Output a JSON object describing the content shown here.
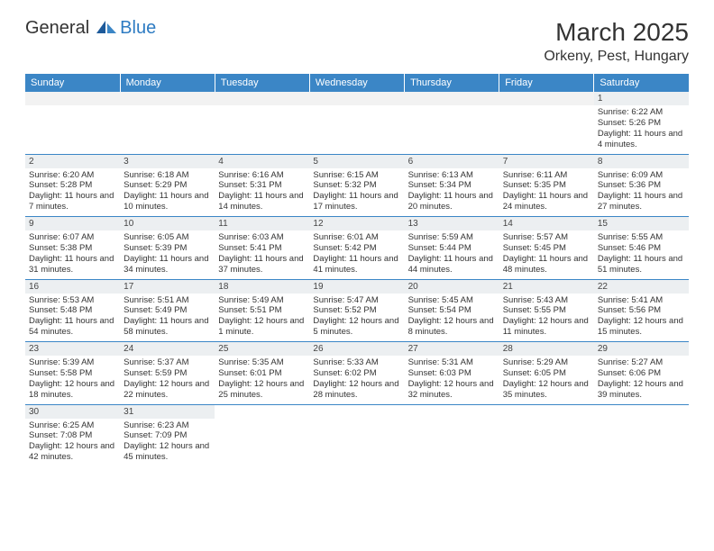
{
  "logo": {
    "general": "General",
    "blue": "Blue"
  },
  "title": "March 2025",
  "location": "Orkeny, Pest, Hungary",
  "colors": {
    "header_bg": "#3b86c6",
    "header_text": "#ffffff",
    "daynum_bg": "#eceff1",
    "border": "#3b86c6",
    "logo_blue": "#2d7bc2"
  },
  "day_headers": [
    "Sunday",
    "Monday",
    "Tuesday",
    "Wednesday",
    "Thursday",
    "Friday",
    "Saturday"
  ],
  "weeks": [
    [
      null,
      null,
      null,
      null,
      null,
      null,
      {
        "n": "1",
        "sr": "6:22 AM",
        "ss": "5:26 PM",
        "dl": "11 hours and 4 minutes."
      }
    ],
    [
      {
        "n": "2",
        "sr": "6:20 AM",
        "ss": "5:28 PM",
        "dl": "11 hours and 7 minutes."
      },
      {
        "n": "3",
        "sr": "6:18 AM",
        "ss": "5:29 PM",
        "dl": "11 hours and 10 minutes."
      },
      {
        "n": "4",
        "sr": "6:16 AM",
        "ss": "5:31 PM",
        "dl": "11 hours and 14 minutes."
      },
      {
        "n": "5",
        "sr": "6:15 AM",
        "ss": "5:32 PM",
        "dl": "11 hours and 17 minutes."
      },
      {
        "n": "6",
        "sr": "6:13 AM",
        "ss": "5:34 PM",
        "dl": "11 hours and 20 minutes."
      },
      {
        "n": "7",
        "sr": "6:11 AM",
        "ss": "5:35 PM",
        "dl": "11 hours and 24 minutes."
      },
      {
        "n": "8",
        "sr": "6:09 AM",
        "ss": "5:36 PM",
        "dl": "11 hours and 27 minutes."
      }
    ],
    [
      {
        "n": "9",
        "sr": "6:07 AM",
        "ss": "5:38 PM",
        "dl": "11 hours and 31 minutes."
      },
      {
        "n": "10",
        "sr": "6:05 AM",
        "ss": "5:39 PM",
        "dl": "11 hours and 34 minutes."
      },
      {
        "n": "11",
        "sr": "6:03 AM",
        "ss": "5:41 PM",
        "dl": "11 hours and 37 minutes."
      },
      {
        "n": "12",
        "sr": "6:01 AM",
        "ss": "5:42 PM",
        "dl": "11 hours and 41 minutes."
      },
      {
        "n": "13",
        "sr": "5:59 AM",
        "ss": "5:44 PM",
        "dl": "11 hours and 44 minutes."
      },
      {
        "n": "14",
        "sr": "5:57 AM",
        "ss": "5:45 PM",
        "dl": "11 hours and 48 minutes."
      },
      {
        "n": "15",
        "sr": "5:55 AM",
        "ss": "5:46 PM",
        "dl": "11 hours and 51 minutes."
      }
    ],
    [
      {
        "n": "16",
        "sr": "5:53 AM",
        "ss": "5:48 PM",
        "dl": "11 hours and 54 minutes."
      },
      {
        "n": "17",
        "sr": "5:51 AM",
        "ss": "5:49 PM",
        "dl": "11 hours and 58 minutes."
      },
      {
        "n": "18",
        "sr": "5:49 AM",
        "ss": "5:51 PM",
        "dl": "12 hours and 1 minute."
      },
      {
        "n": "19",
        "sr": "5:47 AM",
        "ss": "5:52 PM",
        "dl": "12 hours and 5 minutes."
      },
      {
        "n": "20",
        "sr": "5:45 AM",
        "ss": "5:54 PM",
        "dl": "12 hours and 8 minutes."
      },
      {
        "n": "21",
        "sr": "5:43 AM",
        "ss": "5:55 PM",
        "dl": "12 hours and 11 minutes."
      },
      {
        "n": "22",
        "sr": "5:41 AM",
        "ss": "5:56 PM",
        "dl": "12 hours and 15 minutes."
      }
    ],
    [
      {
        "n": "23",
        "sr": "5:39 AM",
        "ss": "5:58 PM",
        "dl": "12 hours and 18 minutes."
      },
      {
        "n": "24",
        "sr": "5:37 AM",
        "ss": "5:59 PM",
        "dl": "12 hours and 22 minutes."
      },
      {
        "n": "25",
        "sr": "5:35 AM",
        "ss": "6:01 PM",
        "dl": "12 hours and 25 minutes."
      },
      {
        "n": "26",
        "sr": "5:33 AM",
        "ss": "6:02 PM",
        "dl": "12 hours and 28 minutes."
      },
      {
        "n": "27",
        "sr": "5:31 AM",
        "ss": "6:03 PM",
        "dl": "12 hours and 32 minutes."
      },
      {
        "n": "28",
        "sr": "5:29 AM",
        "ss": "6:05 PM",
        "dl": "12 hours and 35 minutes."
      },
      {
        "n": "29",
        "sr": "5:27 AM",
        "ss": "6:06 PM",
        "dl": "12 hours and 39 minutes."
      }
    ],
    [
      {
        "n": "30",
        "sr": "6:25 AM",
        "ss": "7:08 PM",
        "dl": "12 hours and 42 minutes."
      },
      {
        "n": "31",
        "sr": "6:23 AM",
        "ss": "7:09 PM",
        "dl": "12 hours and 45 minutes."
      },
      null,
      null,
      null,
      null,
      null
    ]
  ],
  "labels": {
    "sunrise": "Sunrise:",
    "sunset": "Sunset:",
    "daylight": "Daylight:"
  }
}
